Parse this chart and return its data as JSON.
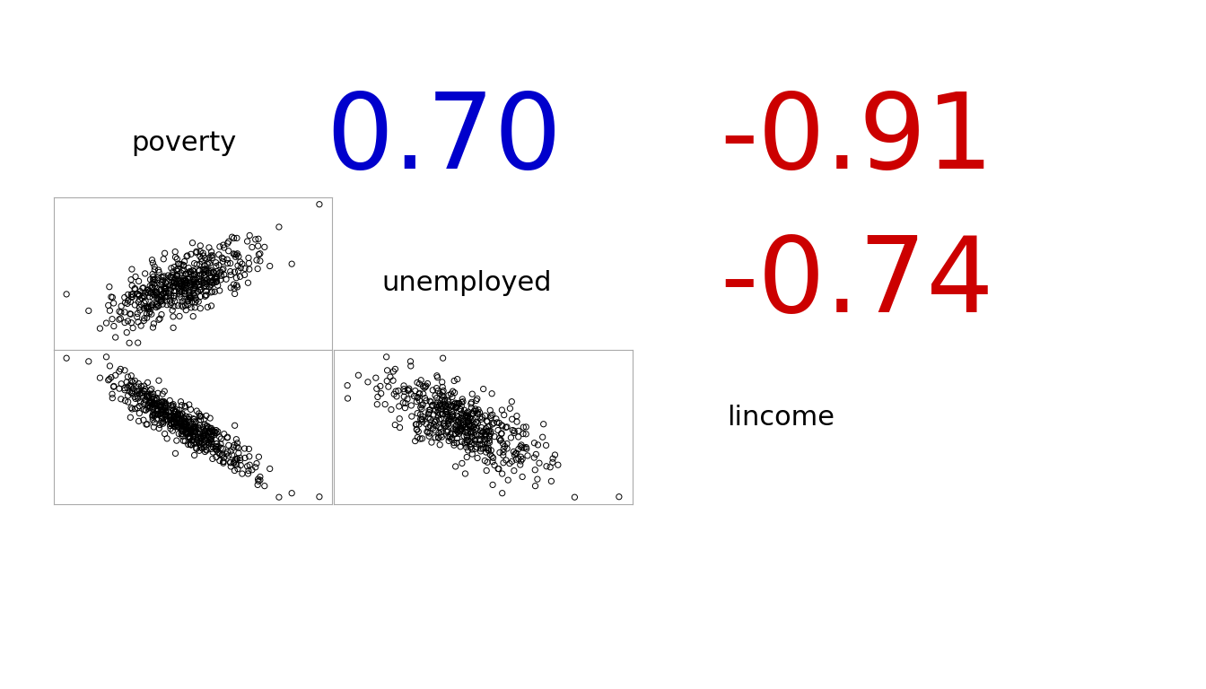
{
  "variables": [
    "poverty",
    "unemployed",
    "lincome"
  ],
  "correlations": {
    "poverty_unemployed": 0.7,
    "poverty_lincome": -0.91,
    "unemployed_lincome": -0.74
  },
  "corr_colors": {
    "positive": "#0000cc",
    "negative": "#cc0000"
  },
  "label_fontsize": 22,
  "corr_fontsize_large": 85,
  "n_points": 500,
  "scatter_marker_size": 20,
  "scatter_color": "black",
  "background_color": "#ffffff",
  "seed": 42,
  "fig_width": 13.44,
  "fig_height": 7.68,
  "dpi": 100
}
